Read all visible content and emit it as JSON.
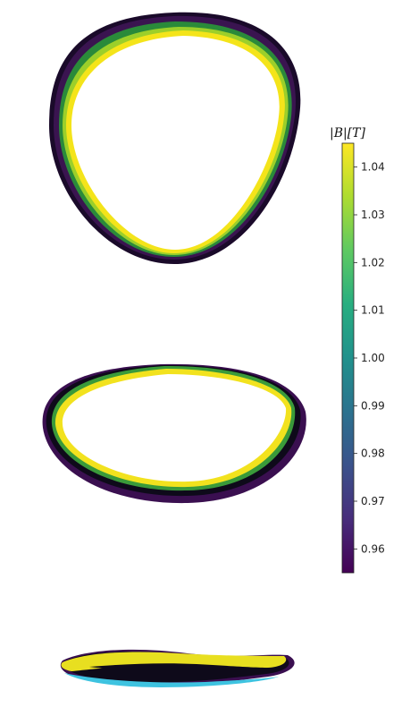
{
  "chart_data": {
    "type": "heatmap",
    "title": "",
    "colormap": "viridis",
    "colorbar": {
      "label": "|B|[T]",
      "range": [
        0.955,
        1.045
      ],
      "ticks": [
        "0.96",
        "0.97",
        "0.98",
        "0.99",
        "1.00",
        "1.01",
        "1.02",
        "1.03",
        "1.04"
      ],
      "tick_values": [
        0.96,
        0.97,
        0.98,
        0.99,
        1.0,
        1.01,
        1.02,
        1.03,
        1.04
      ],
      "placement": "right"
    },
    "panels": [
      {
        "name": "",
        "description_shape": "triangular",
        "inner_field": "high",
        "outer_field": "low"
      },
      {
        "name": "",
        "description_shape": "elliptical",
        "inner_field": "high",
        "outer_field": "low"
      },
      {
        "name": "",
        "description_shape": "flat",
        "inner_field": "high",
        "outer_field": "low"
      }
    ],
    "grid": false,
    "axes_visible": false
  }
}
